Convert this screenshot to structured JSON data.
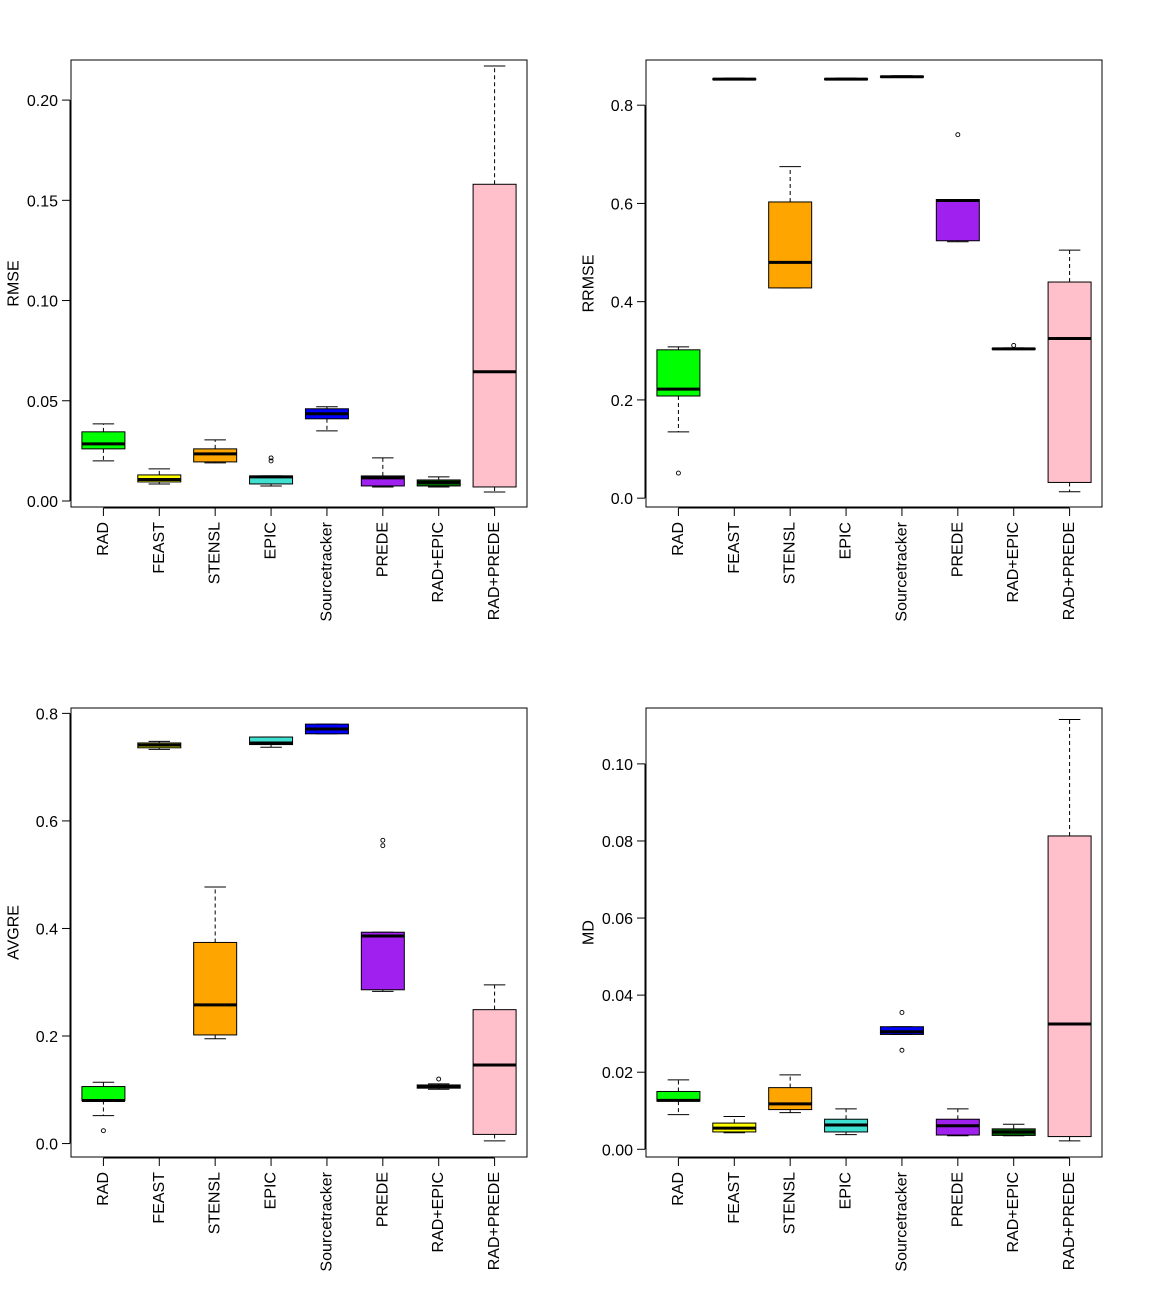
{
  "colors": {
    "RAD": "#00ff00",
    "FEAST": "#ffff00",
    "STENSL": "#ffa500",
    "EPIC": "#40e0d0",
    "Sourcetracker": "#0000ff",
    "PREDE": "#a020f0",
    "RAD+EPIC": "#006400",
    "RAD+PREDE": "#ffc0cb"
  },
  "chart_data": [
    {
      "type": "boxplot",
      "ylabel": "RMSE",
      "xlabel": "",
      "categories": [
        "RAD",
        "FEAST",
        "STENSL",
        "EPIC",
        "Sourcetracker",
        "PREDE",
        "RAD+EPIC",
        "RAD+PREDE"
      ],
      "ylim": [
        -0.003,
        0.22
      ],
      "yticks": [
        0.0,
        0.05,
        0.1,
        0.15,
        0.2
      ],
      "ytick_labels": [
        "0.00",
        "0.05",
        "0.10",
        "0.15",
        "0.20"
      ],
      "grid": false,
      "boxes": [
        {
          "min": 0.02,
          "q1": 0.026,
          "median": 0.0285,
          "q3": 0.0345,
          "max": 0.0385,
          "outliers": []
        },
        {
          "min": 0.0085,
          "q1": 0.0095,
          "median": 0.0107,
          "q3": 0.013,
          "max": 0.016,
          "outliers": []
        },
        {
          "min": 0.019,
          "q1": 0.0195,
          "median": 0.0235,
          "q3": 0.026,
          "max": 0.0305,
          "outliers": []
        },
        {
          "min": 0.0075,
          "q1": 0.0085,
          "median": 0.012,
          "q3": 0.0125,
          "max": 0.0125,
          "outliers": [
            0.02,
            0.0215
          ]
        },
        {
          "min": 0.035,
          "q1": 0.041,
          "median": 0.0435,
          "q3": 0.046,
          "max": 0.047,
          "outliers": []
        },
        {
          "min": 0.007,
          "q1": 0.0075,
          "median": 0.0115,
          "q3": 0.0125,
          "max": 0.0215,
          "outliers": []
        },
        {
          "min": 0.007,
          "q1": 0.0075,
          "median": 0.0093,
          "q3": 0.0105,
          "max": 0.012,
          "outliers": []
        },
        {
          "min": 0.0045,
          "q1": 0.007,
          "median": 0.0645,
          "q3": 0.158,
          "max": 0.217,
          "outliers": []
        }
      ]
    },
    {
      "type": "boxplot",
      "ylabel": "RRMSE",
      "xlabel": "",
      "categories": [
        "RAD",
        "FEAST",
        "STENSL",
        "EPIC",
        "Sourcetracker",
        "PREDE",
        "RAD+EPIC",
        "RAD+PREDE"
      ],
      "ylim": [
        -0.018,
        0.892
      ],
      "yticks": [
        0.0,
        0.2,
        0.4,
        0.6,
        0.8
      ],
      "ytick_labels": [
        "0.0",
        "0.2",
        "0.4",
        "0.6",
        "0.8"
      ],
      "grid": false,
      "boxes": [
        {
          "min": 0.135,
          "q1": 0.208,
          "median": 0.222,
          "q3": 0.302,
          "max": 0.308,
          "outliers": [
            0.051
          ]
        },
        {
          "min": 0.852,
          "q1": 0.852,
          "median": 0.853,
          "q3": 0.854,
          "max": 0.855,
          "outliers": []
        },
        {
          "min": 0.428,
          "q1": 0.428,
          "median": 0.48,
          "q3": 0.603,
          "max": 0.675,
          "outliers": []
        },
        {
          "min": 0.852,
          "q1": 0.852,
          "median": 0.853,
          "q3": 0.854,
          "max": 0.855,
          "outliers": []
        },
        {
          "min": 0.857,
          "q1": 0.857,
          "median": 0.858,
          "q3": 0.859,
          "max": 0.86,
          "outliers": []
        },
        {
          "min": 0.522,
          "q1": 0.524,
          "median": 0.606,
          "q3": 0.608,
          "max": 0.608,
          "outliers": [
            0.74
          ]
        },
        {
          "min": 0.303,
          "q1": 0.303,
          "median": 0.304,
          "q3": 0.305,
          "max": 0.306,
          "outliers": [
            0.311
          ]
        },
        {
          "min": 0.013,
          "q1": 0.032,
          "median": 0.325,
          "q3": 0.44,
          "max": 0.505,
          "outliers": []
        }
      ]
    },
    {
      "type": "boxplot",
      "ylabel": "AVGRE",
      "xlabel": "",
      "categories": [
        "RAD",
        "FEAST",
        "STENSL",
        "EPIC",
        "Sourcetracker",
        "PREDE",
        "RAD+EPIC",
        "RAD+PREDE"
      ],
      "ylim": [
        -0.025,
        0.81
      ],
      "yticks": [
        0.0,
        0.2,
        0.4,
        0.6,
        0.8
      ],
      "ytick_labels": [
        "0.0",
        "0.2",
        "0.4",
        "0.6",
        "0.8"
      ],
      "grid": false,
      "boxes": [
        {
          "min": 0.052,
          "q1": 0.08,
          "median": 0.08,
          "q3": 0.106,
          "max": 0.114,
          "outliers": [
            0.024
          ]
        },
        {
          "min": 0.733,
          "q1": 0.736,
          "median": 0.741,
          "q3": 0.745,
          "max": 0.748,
          "outliers": []
        },
        {
          "min": 0.195,
          "q1": 0.202,
          "median": 0.258,
          "q3": 0.374,
          "max": 0.477,
          "outliers": []
        },
        {
          "min": 0.737,
          "q1": 0.742,
          "median": 0.745,
          "q3": 0.756,
          "max": 0.756,
          "outliers": []
        },
        {
          "min": 0.762,
          "q1": 0.762,
          "median": 0.771,
          "q3": 0.78,
          "max": 0.78,
          "outliers": []
        },
        {
          "min": 0.283,
          "q1": 0.286,
          "median": 0.386,
          "q3": 0.393,
          "max": 0.393,
          "outliers": [
            0.554,
            0.564
          ]
        },
        {
          "min": 0.101,
          "q1": 0.103,
          "median": 0.106,
          "q3": 0.109,
          "max": 0.111,
          "outliers": [
            0.12
          ]
        },
        {
          "min": 0.005,
          "q1": 0.017,
          "median": 0.146,
          "q3": 0.249,
          "max": 0.295,
          "outliers": []
        }
      ]
    },
    {
      "type": "boxplot",
      "ylabel": "MD",
      "xlabel": "",
      "categories": [
        "RAD",
        "FEAST",
        "STENSL",
        "EPIC",
        "Sourcetracker",
        "PREDE",
        "RAD+EPIC",
        "RAD+PREDE"
      ],
      "ylim": [
        -0.002,
        0.1145
      ],
      "yticks": [
        0.0,
        0.02,
        0.04,
        0.06,
        0.08,
        0.1
      ],
      "ytick_labels": [
        "0.00",
        "0.02",
        "0.04",
        "0.06",
        "0.08",
        "0.10"
      ],
      "grid": false,
      "boxes": [
        {
          "min": 0.009,
          "q1": 0.0125,
          "median": 0.0127,
          "q3": 0.015,
          "max": 0.018,
          "outliers": []
        },
        {
          "min": 0.0043,
          "q1": 0.0045,
          "median": 0.0055,
          "q3": 0.0068,
          "max": 0.0085,
          "outliers": []
        },
        {
          "min": 0.0095,
          "q1": 0.0103,
          "median": 0.0118,
          "q3": 0.016,
          "max": 0.0193,
          "outliers": []
        },
        {
          "min": 0.0038,
          "q1": 0.0045,
          "median": 0.0063,
          "q3": 0.0078,
          "max": 0.0105,
          "outliers": []
        },
        {
          "min": 0.0298,
          "q1": 0.0298,
          "median": 0.0305,
          "q3": 0.0318,
          "max": 0.0318,
          "outliers": [
            0.0355,
            0.0257
          ]
        },
        {
          "min": 0.0035,
          "q1": 0.0037,
          "median": 0.0061,
          "q3": 0.0078,
          "max": 0.0105,
          "outliers": []
        },
        {
          "min": 0.0035,
          "q1": 0.0036,
          "median": 0.0045,
          "q3": 0.0053,
          "max": 0.0065,
          "outliers": []
        },
        {
          "min": 0.0022,
          "q1": 0.0033,
          "median": 0.0325,
          "q3": 0.0813,
          "max": 0.1115,
          "outliers": []
        }
      ]
    }
  ]
}
